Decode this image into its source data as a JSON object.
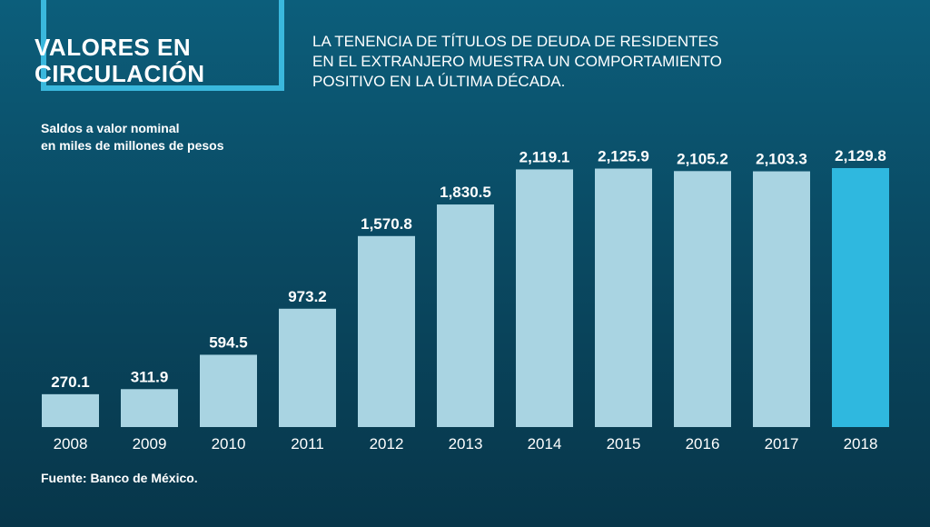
{
  "header": {
    "title_lines": [
      "VALORES EN",
      "CIRCULACIÓN"
    ],
    "subtitle_lines": [
      "LA TENENCIA DE TÍTULOS DE DEUDA DE RESIDENTES",
      "EN EL EXTRANJERO  MUESTRA UN COMPORTAMIENTO",
      "POSITIVO EN LA ÚLTIMA DÉCADA."
    ]
  },
  "unit_label_lines": [
    "Saldos a valor nominal",
    "en miles de millones de pesos"
  ],
  "source": "Fuente: Banco de México.",
  "colors": {
    "bar": "#a9d4e2",
    "highlight_bar": "#2fb8df",
    "title_border": "#3ab8dd"
  },
  "chart_data": {
    "type": "bar",
    "categories": [
      "2008",
      "2009",
      "2010",
      "2011",
      "2012",
      "2013",
      "2014",
      "2015",
      "2016",
      "2017",
      "2018"
    ],
    "values": [
      270.1,
      311.9,
      594.5,
      973.2,
      1570.8,
      1830.5,
      2119.1,
      2125.9,
      2105.2,
      2103.3,
      2129.8
    ],
    "value_labels": [
      "270.1",
      "311.9",
      "594.5",
      "973.2",
      "1,570.8",
      "1,830.5",
      "2,119.1",
      "2,125.9",
      "2,105.2",
      "2,103.3",
      "2,129.8"
    ],
    "highlight_category": "2018",
    "ylim": [
      0,
      2129.8
    ],
    "grid": false,
    "legend": "none"
  }
}
